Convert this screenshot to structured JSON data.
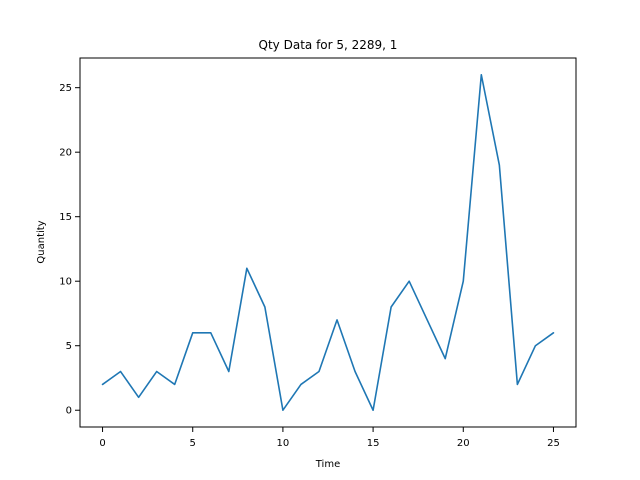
{
  "chart_data": {
    "type": "line",
    "title": "Qty Data for 5, 2289, 1",
    "xlabel": "Time",
    "ylabel": "Quantity",
    "xlim": [
      -1.25,
      26.25
    ],
    "ylim": [
      -1.3,
      27.3
    ],
    "grid": false,
    "x": [
      0,
      1,
      2,
      3,
      4,
      5,
      6,
      7,
      8,
      9,
      10,
      11,
      12,
      13,
      14,
      15,
      16,
      17,
      18,
      19,
      20,
      21,
      22,
      23,
      24,
      25
    ],
    "series": [
      {
        "values": [
          2,
          3,
          1,
          3,
          2,
          6,
          6,
          3,
          11,
          8,
          0,
          2,
          3,
          7,
          3,
          0,
          8,
          10,
          7,
          4,
          10,
          26,
          19,
          2,
          5,
          6
        ],
        "color": "#1f77b4"
      }
    ],
    "x_ticks": [
      "0",
      "5",
      "10",
      "15",
      "20",
      "25"
    ],
    "y_ticks": [
      "0",
      "5",
      "10",
      "15",
      "20",
      "25"
    ]
  }
}
